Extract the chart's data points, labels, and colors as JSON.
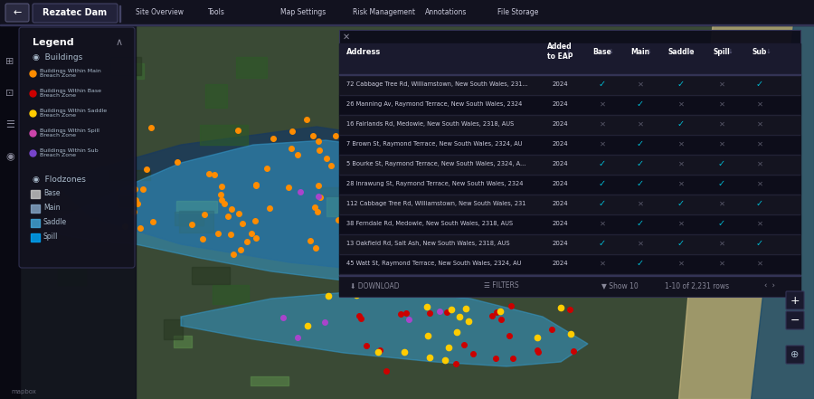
{
  "title": "Rezatec Dam",
  "nav_items": [
    "Site Overview",
    "Tools",
    "Map Settings",
    "Risk Management",
    "Annotations",
    "File Storage"
  ],
  "bg_color": "#1a1a2e",
  "panel_bg": "#0d1117",
  "panel_bg2": "#161b22",
  "header_bg": "#0d1117",
  "topbar_bg": "#1c1c2e",
  "table_header_color": "#ffffff",
  "table_row_color": "#cccccc",
  "accent_cyan": "#00bcd4",
  "accent_gray": "#555555",
  "legend_title": "Legend",
  "legend_buildings": "Buildings",
  "legend_flodzones": "Flodzones",
  "legend_items_buildings": [
    {
      "label": "Buildings Within Main\nBreach Zone",
      "color": "#ff8c00"
    },
    {
      "label": "Buildings Within Base\nBreach Zone",
      "color": "#cc0000"
    },
    {
      "label": "Buildings Within Saddle\nBreach Zone",
      "color": "#ffcc00"
    },
    {
      "label": "Buildings Within Spill\nBreach Zone",
      "color": "#cc44aa"
    },
    {
      "label": "Buildings Within Sub\nBreach Zone",
      "color": "#7744cc"
    }
  ],
  "legend_items_flodzones": [
    {
      "label": "Base",
      "color": "#cccccc"
    },
    {
      "label": "Main",
      "color": "#88aacc"
    },
    {
      "label": "Saddle",
      "color": "#44aadd"
    },
    {
      "label": "Spill",
      "color": "#00aaff"
    }
  ],
  "table_columns": [
    "Address",
    "Added\nto EAP",
    "Base",
    "Main",
    "Saddle",
    "Spill",
    "Sub"
  ],
  "table_rows": [
    {
      "address": "72 Cabbage Tree Rd, Williamstown, New South Wales, 231...",
      "year": "2024",
      "base": true,
      "main": false,
      "saddle": true,
      "spill": false,
      "sub": true
    },
    {
      "address": "26 Manning Av, Raymond Terrace, New South Wales, 2324",
      "year": "2024",
      "base": false,
      "main": true,
      "saddle": false,
      "spill": false,
      "sub": false
    },
    {
      "address": "16 Fairlands Rd, Medowie, New South Wales, 2318, AUS",
      "year": "2024",
      "base": false,
      "main": false,
      "saddle": true,
      "spill": false,
      "sub": false
    },
    {
      "address": "7 Brown St, Raymond Terrace, New South Wales, 2324, AU",
      "year": "2024",
      "base": false,
      "main": true,
      "saddle": false,
      "spill": false,
      "sub": false
    },
    {
      "address": "5 Bourke St, Raymond Terrace, New South Wales, 2324, A...",
      "year": "2024",
      "base": true,
      "main": true,
      "saddle": false,
      "spill": true,
      "sub": false
    },
    {
      "address": "28 Inrawung St, Raymond Terrace, New South Wales, 2324",
      "year": "2024",
      "base": true,
      "main": true,
      "saddle": false,
      "spill": true,
      "sub": false
    },
    {
      "address": "112 Cabbage Tree Rd, Williamstown, New South Wales, 231",
      "year": "2024",
      "base": true,
      "main": false,
      "saddle": true,
      "spill": false,
      "sub": true
    },
    {
      "address": "38 Ferndale Rd, Medowie, New South Wales, 2318, AUS",
      "year": "2024",
      "base": false,
      "main": true,
      "saddle": false,
      "spill": true,
      "sub": false
    },
    {
      "address": "13 Oakfield Rd, Salt Ash, New South Wales, 2318, AUS",
      "year": "2024",
      "base": true,
      "main": false,
      "saddle": true,
      "spill": false,
      "sub": true
    },
    {
      "address": "45 Watt St, Raymond Terrace, New South Wales, 2324, AU",
      "year": "2024",
      "base": false,
      "main": true,
      "saddle": false,
      "spill": false,
      "sub": false
    }
  ],
  "footer_text": "1-10 of 2,231 rows",
  "map_flood_color": "#3399cc",
  "map_flood_alpha": 0.55,
  "dot_colors": {
    "orange": "#ff8c00",
    "red": "#cc0000",
    "yellow": "#ffcc00",
    "purple": "#aa44cc"
  }
}
